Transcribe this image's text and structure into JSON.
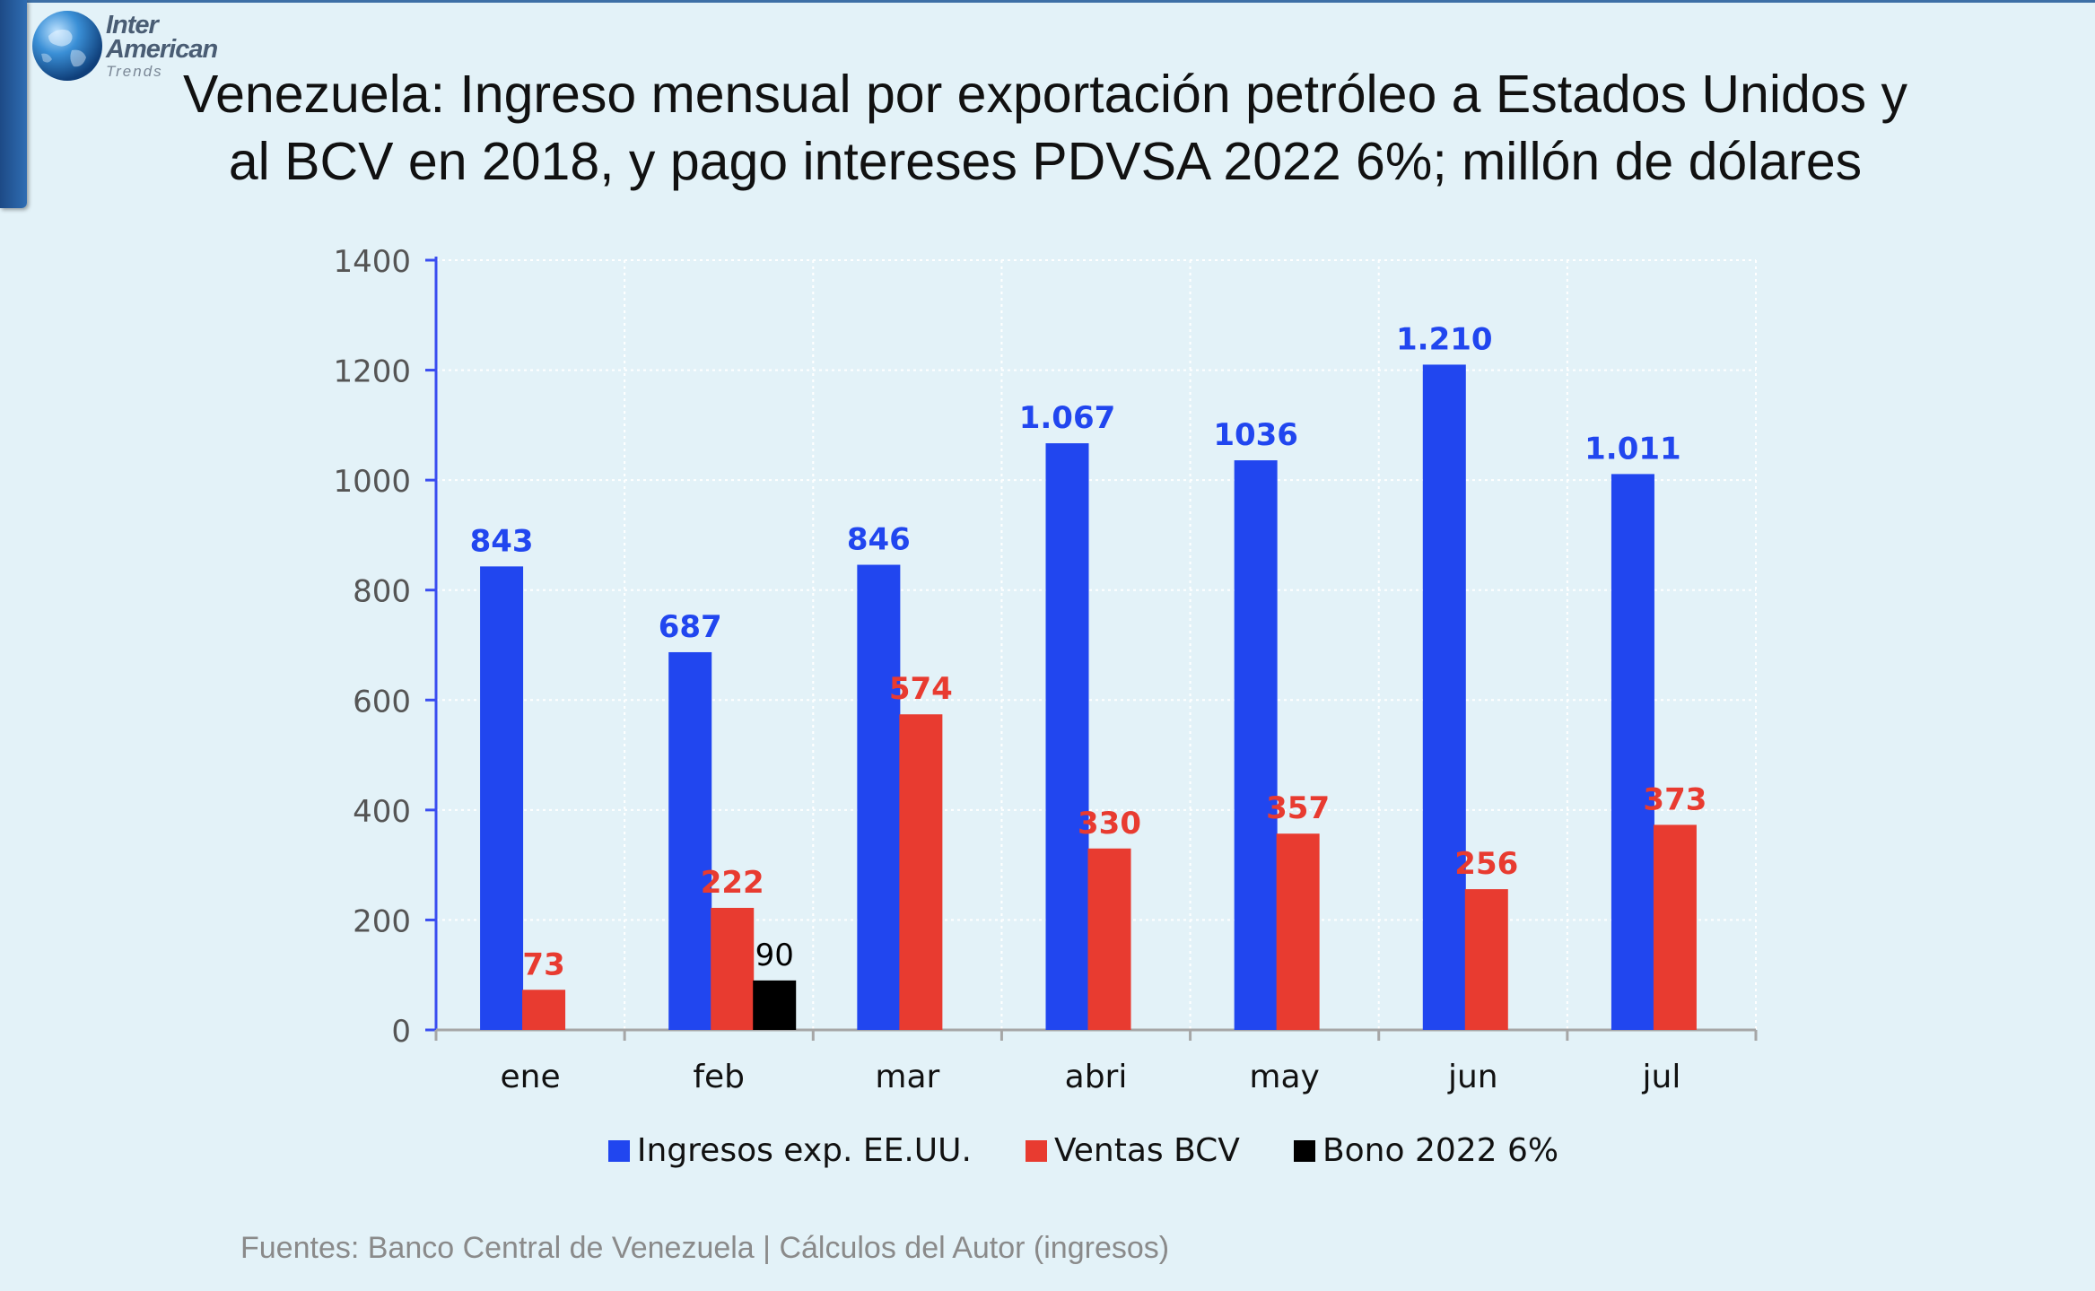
{
  "logo": {
    "line1": "Inter",
    "line2": "American",
    "line3": "Trends"
  },
  "title": "Venezuela: Ingreso mensual por exportación petróleo a Estados Unidos y al BCV en 2018, y pago intereses PDVSA 2022 6%; millón de dólares",
  "source": "Fuentes: Banco Central de Venezuela | Cálculos del Autor  (ingresos)",
  "chart_data": {
    "type": "bar",
    "title": "Venezuela: Ingreso mensual por exportación petróleo a Estados Unidos y al BCV en 2018, y pago intereses PDVSA 2022 6%; millón de dólares",
    "categories": [
      "ene",
      "feb",
      "mar",
      "abri",
      "may",
      "jun",
      "jul"
    ],
    "ylim": [
      0,
      1400
    ],
    "yticks": [
      0,
      200,
      400,
      600,
      800,
      1000,
      1200,
      1400
    ],
    "ytick_labels": [
      "0",
      "200",
      "400",
      "600",
      "800",
      "1000",
      "1200",
      "1400"
    ],
    "grid": true,
    "legend_position": "bottom",
    "series": [
      {
        "name": "Ingresos exp. EE.UU.",
        "color": "#2146ef",
        "label_color": "#2146ef",
        "values": [
          843,
          687,
          846,
          1067,
          1036,
          1210,
          1011
        ],
        "labels": [
          "843",
          "687",
          "846",
          "1.067",
          "1036",
          "1.210",
          "1.011"
        ]
      },
      {
        "name": "Ventas BCV",
        "color": "#e83b30",
        "label_color": "#e83b30",
        "values": [
          73,
          222,
          574,
          330,
          357,
          256,
          373
        ],
        "labels": [
          "73",
          "222",
          "574",
          "330",
          "357",
          "256",
          "373"
        ]
      },
      {
        "name": "Bono 2022 6%",
        "color": "#000000",
        "label_color": "#000000",
        "values": [
          null,
          90,
          null,
          null,
          null,
          null,
          null
        ],
        "labels": [
          null,
          "90",
          null,
          null,
          null,
          null,
          null
        ]
      }
    ]
  }
}
